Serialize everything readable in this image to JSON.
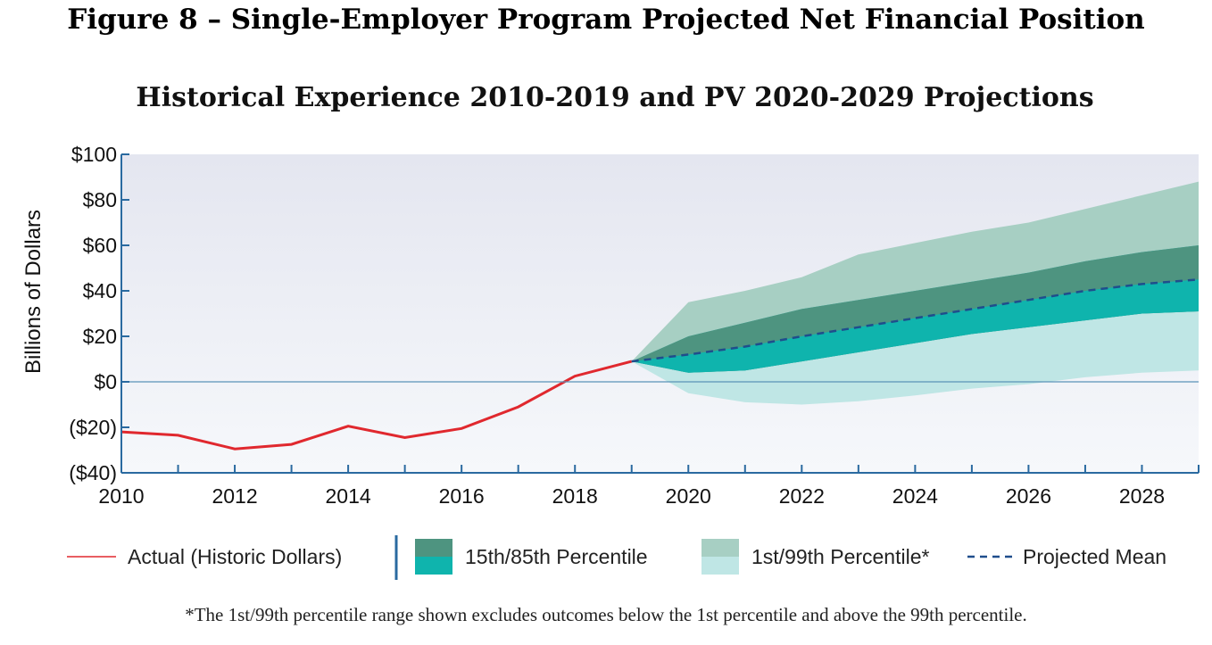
{
  "figure_title": "Figure 8 – Single-Employer Program Projected Net Financial Position",
  "footnote": "*The 1st/99th percentile range shown excludes outcomes below the 1st percentile and above the 99th percentile.",
  "colors": {
    "actual": "#e0282e",
    "band_1_99_upper": "#a7cfc3",
    "band_1_99_lower": "#bfe6e5",
    "band_15_85_upper": "#4e9480",
    "band_15_85_lower": "#0fb4ad",
    "mean": "#1f4e8c",
    "axis": "#2a6aa0",
    "plot_bg_top": "#e4e6f0",
    "plot_bg_bottom": "#f6f8fb"
  },
  "chart_data": {
    "type": "area",
    "title": "Historical Experience 2010-2019 and PV 2020-2029 Projections",
    "ylabel": "Billions of Dollars",
    "xlabel": "",
    "xlim": [
      2010,
      2029
    ],
    "ylim": [
      -40,
      100
    ],
    "x_ticks": [
      "2010",
      "2012",
      "2014",
      "2016",
      "2018",
      "2020",
      "2022",
      "2024",
      "2026",
      "2028"
    ],
    "y_ticks": [
      "$100",
      "$80",
      "$60",
      "$40",
      "$20",
      "$0",
      "($20)",
      "($40)"
    ],
    "grid": false,
    "legend_position": "bottom",
    "series": [
      {
        "name": "Actual (Historic Dollars)",
        "x": [
          2010,
          2011,
          2012,
          2013,
          2014,
          2015,
          2016,
          2017,
          2018,
          2019
        ],
        "values": [
          -22,
          -23.5,
          -29.5,
          -27.5,
          -19.5,
          -24.5,
          -20.5,
          -11,
          2.5,
          9
        ]
      },
      {
        "name": "Projected Mean",
        "x": [
          2019,
          2020,
          2021,
          2022,
          2023,
          2024,
          2025,
          2026,
          2027,
          2028,
          2029
        ],
        "values": [
          9,
          12,
          15.5,
          20,
          24,
          28,
          32,
          36,
          40,
          43,
          45
        ]
      }
    ],
    "bands": {
      "x": [
        2019,
        2020,
        2021,
        2022,
        2023,
        2024,
        2025,
        2026,
        2027,
        2028,
        2029
      ],
      "p1": [
        9,
        -5,
        -9,
        -10,
        -8.5,
        -6,
        -3,
        -1,
        2,
        4,
        5
      ],
      "p15": [
        9,
        4,
        5,
        9,
        13,
        17,
        21,
        24,
        27,
        30,
        31
      ],
      "p85": [
        9,
        20,
        26,
        32,
        36,
        40,
        44,
        48,
        53,
        57,
        60
      ],
      "p99": [
        9,
        35,
        40,
        46,
        56,
        61,
        66,
        70,
        76,
        82,
        88
      ]
    }
  },
  "legend": {
    "actual": "Actual (Historic Dollars)",
    "p15_85": "15th/85th Percentile",
    "p1_99": "1st/99th Percentile*",
    "mean": "Projected Mean"
  }
}
